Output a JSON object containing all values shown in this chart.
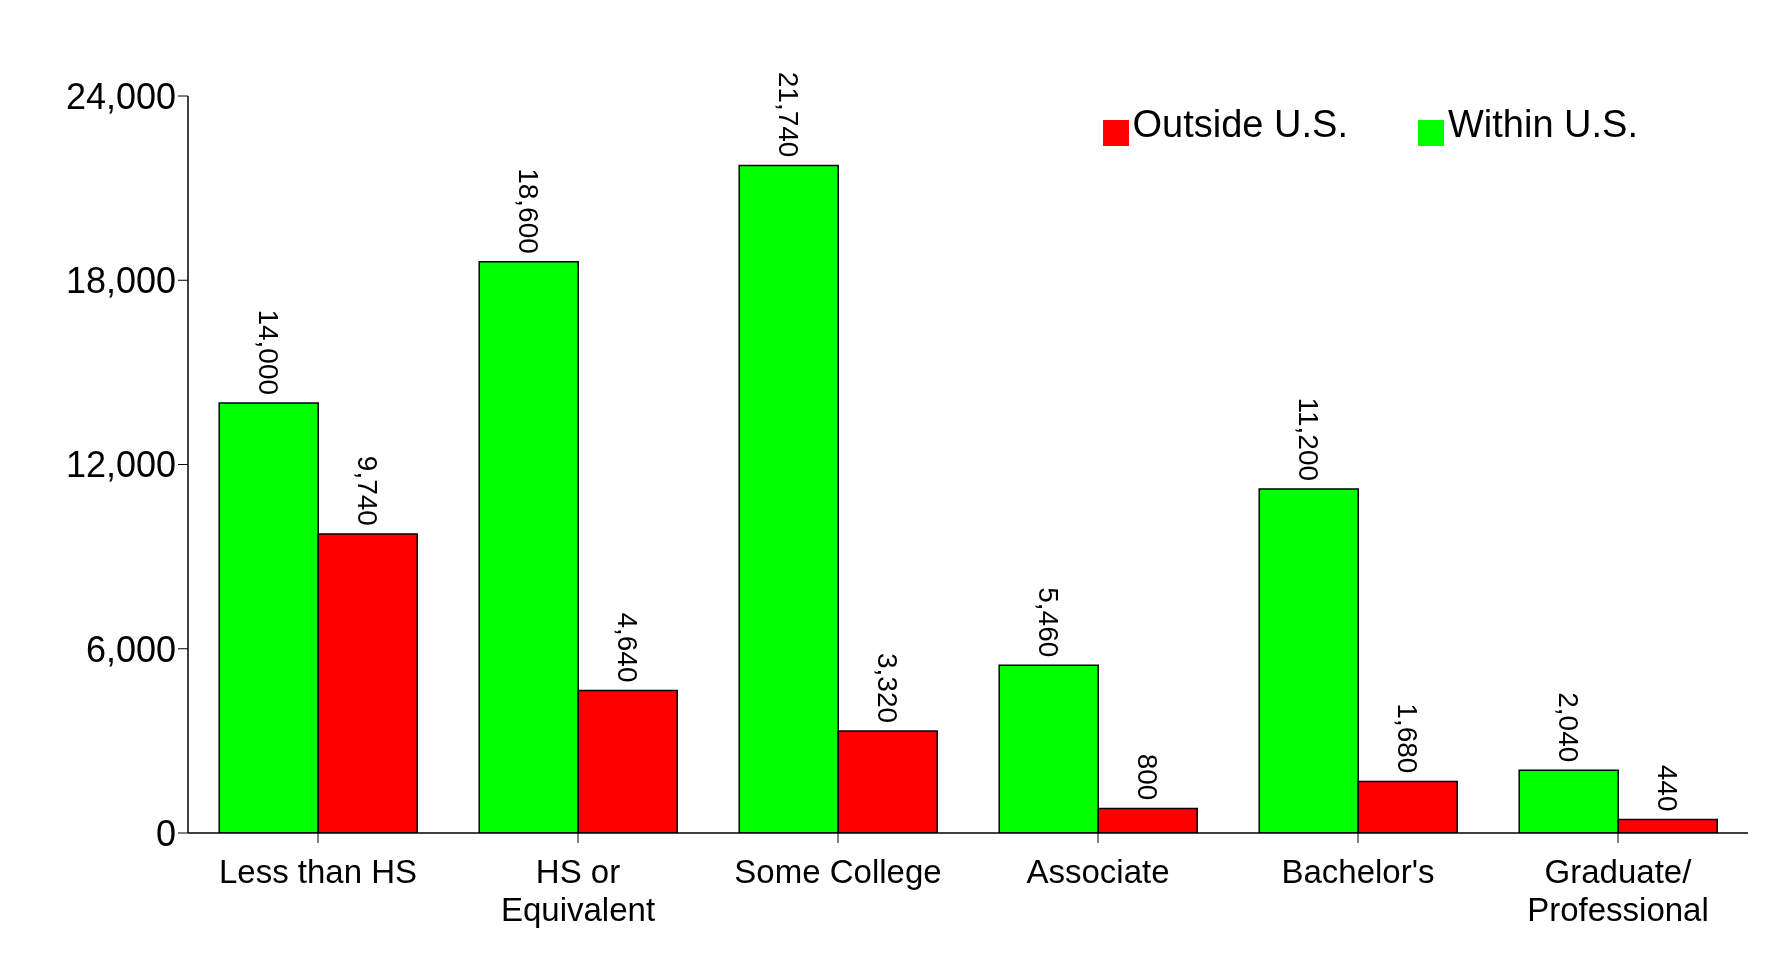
{
  "chart_data": {
    "type": "bar",
    "categories": [
      "Less than HS",
      "HS or Equivalent",
      "Some College",
      "Associate",
      "Bachelor's",
      "Graduate/Professional"
    ],
    "series": [
      {
        "name": "Within U.S.",
        "color": "#00ff00",
        "values": [
          14000,
          18600,
          21740,
          5460,
          11200,
          2040
        ],
        "value_labels": [
          "14,000",
          "18,600",
          "21,740",
          "5,460",
          "11,200",
          "2,040"
        ]
      },
      {
        "name": "Outside U.S.",
        "color": "#ff0000",
        "values": [
          9740,
          4640,
          3320,
          800,
          1680,
          440
        ],
        "value_labels": [
          "9,740",
          "4,640",
          "3,320",
          "800",
          "1,680",
          "440"
        ]
      }
    ],
    "ylim": [
      0,
      24000
    ],
    "yticks": [
      {
        "value": 0,
        "label": "0"
      },
      {
        "value": 6000,
        "label": "6,000"
      },
      {
        "value": 12000,
        "label": "12,000"
      },
      {
        "value": 18000,
        "label": "18,000"
      },
      {
        "value": 24000,
        "label": "24,000"
      }
    ],
    "grid": false,
    "legend": "top right"
  }
}
